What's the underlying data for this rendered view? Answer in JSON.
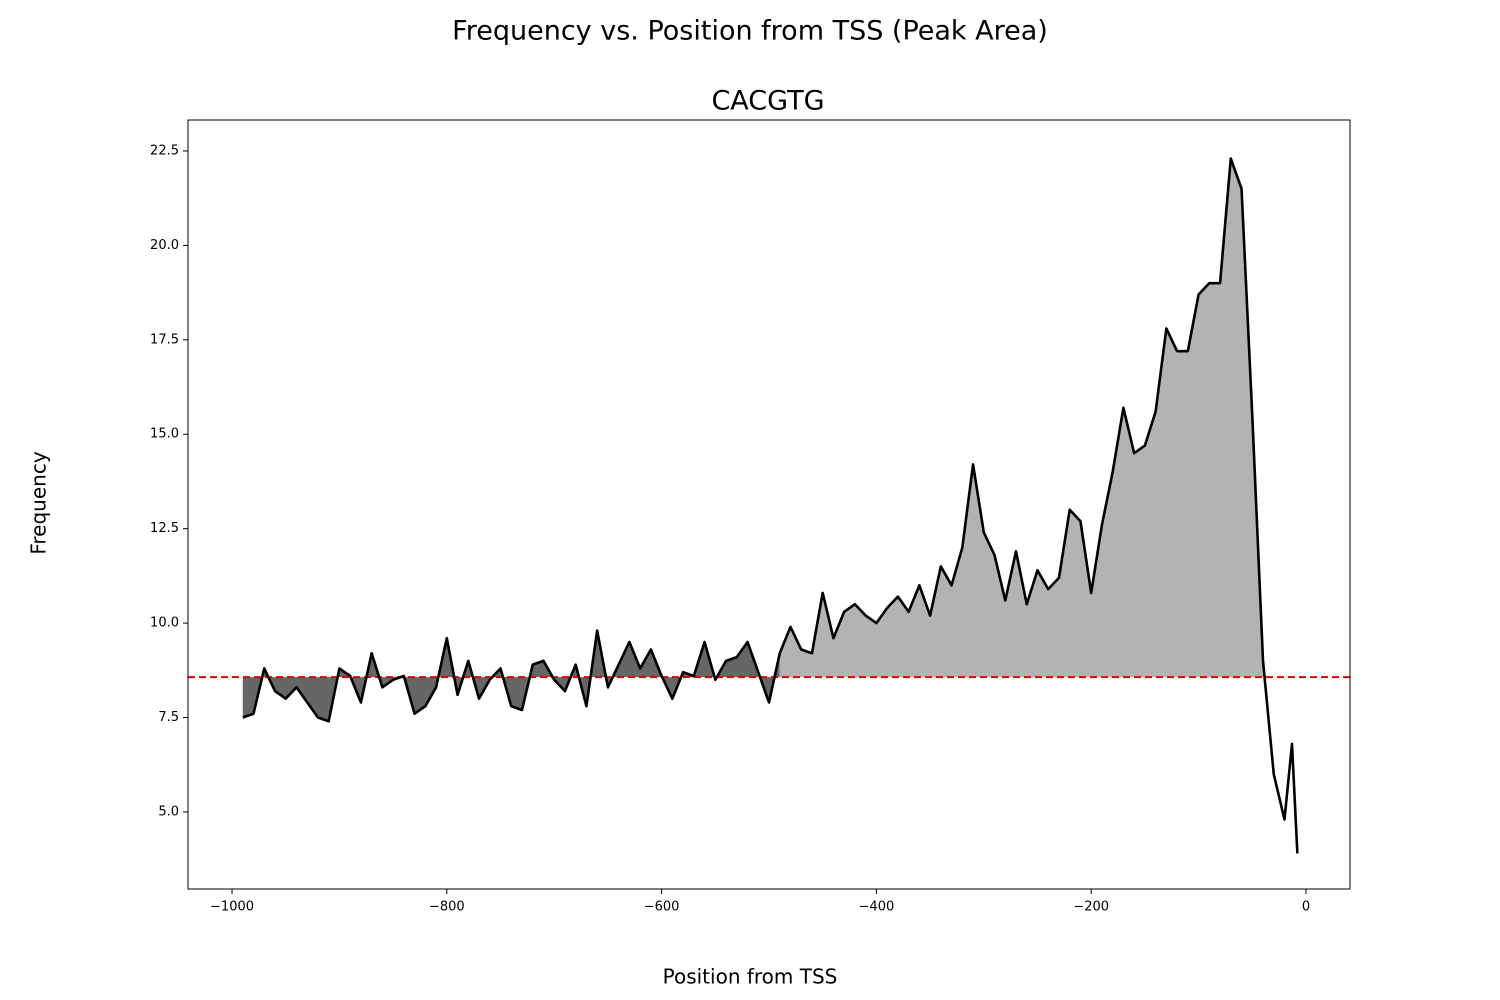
{
  "chart_data": {
    "type": "line",
    "title": "Frequency vs. Position from TSS (Peak Area)",
    "subtitle": "CACGTG",
    "xlabel": "Position from TSS",
    "ylabel": "Frequency",
    "x": [
      -990,
      -980,
      -970,
      -960,
      -950,
      -940,
      -930,
      -920,
      -910,
      -900,
      -890,
      -880,
      -870,
      -860,
      -850,
      -840,
      -830,
      -820,
      -810,
      -800,
      -790,
      -780,
      -770,
      -760,
      -750,
      -740,
      -730,
      -720,
      -710,
      -700,
      -690,
      -680,
      -670,
      -660,
      -650,
      -640,
      -630,
      -620,
      -610,
      -600,
      -590,
      -580,
      -570,
      -560,
      -550,
      -540,
      -530,
      -520,
      -510,
      -500,
      -490,
      -480,
      -470,
      -460,
      -450,
      -440,
      -430,
      -420,
      -410,
      -400,
      -390,
      -380,
      -370,
      -360,
      -350,
      -340,
      -330,
      -320,
      -310,
      -300,
      -290,
      -280,
      -270,
      -260,
      -250,
      -240,
      -230,
      -220,
      -210,
      -200,
      -190,
      -180,
      -170,
      -160,
      -150,
      -140,
      -130,
      -120,
      -110,
      -100,
      -90,
      -80,
      -70,
      -60,
      -50,
      -40,
      -30,
      -20,
      -13,
      -8
    ],
    "series": [
      {
        "name": "CACGTG",
        "color": "#000000",
        "values": [
          7.5,
          7.6,
          8.8,
          8.2,
          8.0,
          8.3,
          7.9,
          7.5,
          7.4,
          8.8,
          8.6,
          7.9,
          9.2,
          8.3,
          8.5,
          8.6,
          7.6,
          7.8,
          8.3,
          9.6,
          8.1,
          9.0,
          8.0,
          8.5,
          8.8,
          7.8,
          7.7,
          8.9,
          9.0,
          8.5,
          8.2,
          8.9,
          7.8,
          9.8,
          8.3,
          8.9,
          9.5,
          8.8,
          9.3,
          8.6,
          8.0,
          8.7,
          8.6,
          9.5,
          8.5,
          9.0,
          9.1,
          9.5,
          8.7,
          7.9,
          9.2,
          9.9,
          9.3,
          9.2,
          10.8,
          9.6,
          10.3,
          10.5,
          10.2,
          10.0,
          10.4,
          10.7,
          10.3,
          11.0,
          10.2,
          11.5,
          11.0,
          12.0,
          14.2,
          12.4,
          11.8,
          10.6,
          11.9,
          10.5,
          11.4,
          10.9,
          11.2,
          13.0,
          12.7,
          10.8,
          12.6,
          14.0,
          15.7,
          14.5,
          14.7,
          15.6,
          17.8,
          17.2,
          17.2,
          18.7,
          19.0,
          19.0,
          22.3,
          21.5,
          15.5,
          9.0,
          6.0,
          4.8,
          6.8,
          3.9
        ]
      }
    ],
    "reference_line": {
      "value": 8.57,
      "color": "#e00000"
    },
    "fill_colors": {
      "outside": "#666666",
      "peak": "#b3b3b3"
    },
    "xlim": [
      -1041,
      41
    ],
    "ylim": [
      2.96,
      23.32
    ],
    "xticks": [
      {
        "value": -1000,
        "label": "−1000"
      },
      {
        "value": -800,
        "label": "−800"
      },
      {
        "value": -600,
        "label": "−600"
      },
      {
        "value": -400,
        "label": "−400"
      },
      {
        "value": -200,
        "label": "−200"
      },
      0
    ],
    "yticks": [
      {
        "value": 5,
        "label": "5.0"
      },
      7.5,
      {
        "value": 10,
        "label": "10.0"
      },
      12.5,
      {
        "value": 15,
        "label": "15.0"
      },
      17.5,
      {
        "value": 20,
        "label": "20.0"
      },
      22.5
    ],
    "grid": false
  }
}
